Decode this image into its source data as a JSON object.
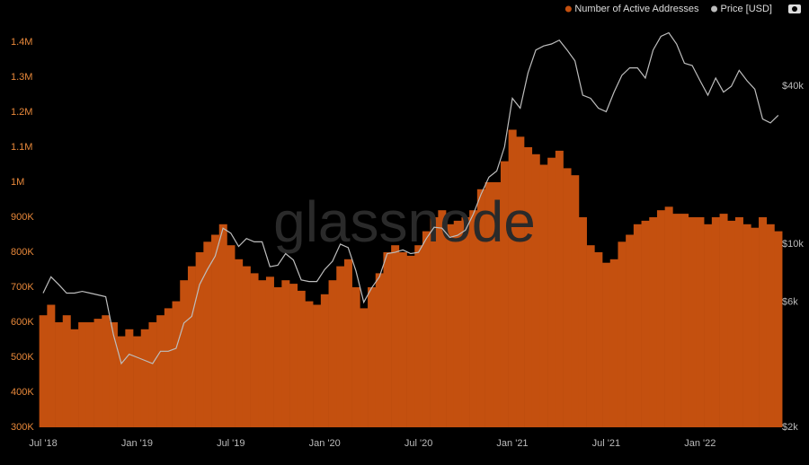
{
  "chart_data": {
    "type": "bar",
    "watermark": "glassnode",
    "categories": [
      "Jul '18",
      null,
      null,
      null,
      null,
      null,
      null,
      null,
      null,
      null,
      null,
      null,
      "Jan '19",
      null,
      null,
      null,
      null,
      null,
      null,
      null,
      null,
      null,
      null,
      null,
      "Jul '19",
      null,
      null,
      null,
      null,
      null,
      null,
      null,
      null,
      null,
      null,
      null,
      "Jan '20",
      null,
      null,
      null,
      null,
      null,
      null,
      null,
      null,
      null,
      null,
      null,
      "Jul '20",
      null,
      null,
      null,
      null,
      null,
      null,
      null,
      null,
      null,
      null,
      null,
      "Jan '21",
      null,
      null,
      null,
      null,
      null,
      null,
      null,
      null,
      null,
      null,
      null,
      "Jul '21",
      null,
      null,
      null,
      null,
      null,
      null,
      null,
      null,
      null,
      null,
      null,
      "Jan '22",
      null,
      null,
      null,
      null,
      null,
      null,
      null,
      null,
      null,
      null
    ],
    "series": [
      {
        "name": "Number of Active Addresses",
        "color": "#c4500f",
        "values": [
          620000,
          650000,
          600000,
          620000,
          580000,
          600000,
          600000,
          610000,
          620000,
          600000,
          560000,
          580000,
          560000,
          580000,
          600000,
          620000,
          640000,
          660000,
          720000,
          760000,
          800000,
          830000,
          850000,
          880000,
          820000,
          780000,
          760000,
          740000,
          720000,
          730000,
          700000,
          720000,
          710000,
          690000,
          660000,
          650000,
          680000,
          720000,
          760000,
          780000,
          700000,
          640000,
          700000,
          740000,
          800000,
          820000,
          800000,
          790000,
          820000,
          860000,
          900000,
          920000,
          880000,
          890000,
          900000,
          920000,
          980000,
          1000000,
          1000000,
          1060000,
          1150000,
          1130000,
          1100000,
          1080000,
          1050000,
          1070000,
          1090000,
          1040000,
          1020000,
          900000,
          820000,
          800000,
          770000,
          780000,
          830000,
          850000,
          880000,
          890000,
          900000,
          920000,
          930000,
          910000,
          910000,
          900000,
          900000,
          880000,
          900000,
          910000,
          890000,
          900000,
          880000,
          870000,
          900000,
          880000,
          860000
        ]
      },
      {
        "name": "Price [USD]",
        "color": "#bdbdbd",
        "axis": "y2",
        "values": [
          6500,
          7500,
          7000,
          6500,
          6500,
          6600,
          6500,
          6400,
          6300,
          4500,
          3500,
          3800,
          3700,
          3600,
          3500,
          3900,
          3900,
          4000,
          5000,
          5300,
          7000,
          8000,
          9000,
          11500,
          11000,
          9800,
          10500,
          10200,
          10200,
          8200,
          8300,
          9200,
          8700,
          7300,
          7200,
          7200,
          8000,
          8600,
          10000,
          9700,
          7900,
          6000,
          6800,
          7500,
          9200,
          9300,
          9500,
          9200,
          9300,
          10500,
          11600,
          11500,
          10600,
          10800,
          11300,
          13000,
          15500,
          18000,
          19000,
          23500,
          36000,
          33000,
          45000,
          55000,
          57000,
          58000,
          60000,
          55000,
          50000,
          37000,
          36000,
          33000,
          32000,
          38000,
          44000,
          47000,
          47000,
          43000,
          55000,
          62000,
          64000,
          58000,
          49000,
          48000,
          42000,
          37000,
          43000,
          38000,
          40000,
          46000,
          42000,
          39000,
          30000,
          29000,
          31000
        ]
      }
    ],
    "ylim": [
      300000,
      1450000
    ],
    "yticks": [
      {
        "value": 300000,
        "label": "300K"
      },
      {
        "value": 400000,
        "label": "400K"
      },
      {
        "value": 500000,
        "label": "500K"
      },
      {
        "value": 600000,
        "label": "600K"
      },
      {
        "value": 700000,
        "label": "700K"
      },
      {
        "value": 800000,
        "label": "800K"
      },
      {
        "value": 900000,
        "label": "900K"
      },
      {
        "value": 1000000,
        "label": "1M"
      },
      {
        "value": 1100000,
        "label": "1.1M"
      },
      {
        "value": 1200000,
        "label": "1.2M"
      },
      {
        "value": 1300000,
        "label": "1.3M"
      },
      {
        "value": 1400000,
        "label": "1.4M"
      }
    ],
    "y2lim": [
      2000,
      68700
    ],
    "y2log": true,
    "y2ticks": [
      {
        "value": 2000,
        "label": "$2k"
      },
      {
        "value": 6000,
        "label": "$6k"
      },
      {
        "value": 10000,
        "label": "$10k"
      },
      {
        "value": 40000,
        "label": "$40k"
      }
    ],
    "legend": "top-right"
  }
}
